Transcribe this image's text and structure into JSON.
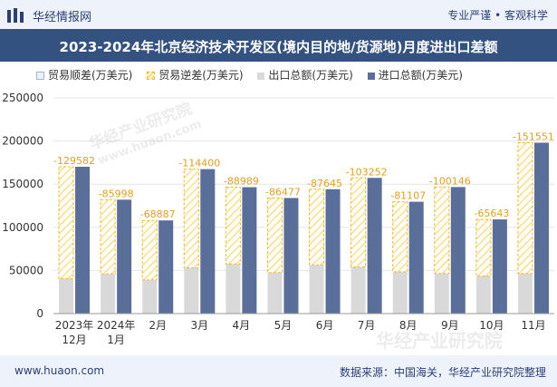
{
  "header": {
    "site_name": "华经情报网",
    "slogan": "专业严谨 • 客观科学"
  },
  "watermark": {
    "text": "华经产业研究院",
    "url": "www.huaon.com"
  },
  "footer": {
    "url": "www.huaon.com",
    "source": "数据来源：中国海关，华经产业研究院整理"
  },
  "colors": {
    "export": "#d9d9d9",
    "import": "#5a6e9a",
    "deficit_stroke": "#f2b92a",
    "deficit_label": "#e0a020",
    "title_bg": "#34527f"
  },
  "chart_data": {
    "type": "bar",
    "title": "2023-2024年北京经济技术开发区(境内目的地/货源地)月度进出口差额",
    "legend": [
      "贸易顺差(万美元)",
      "贸易逆差(万美元)",
      "出口总额(万美元)",
      "进口总额(万美元)"
    ],
    "categories": [
      [
        "2023年",
        "12月"
      ],
      [
        "2024年",
        "1月"
      ],
      [
        "2月"
      ],
      [
        "3月"
      ],
      [
        "4月"
      ],
      [
        "5月"
      ],
      [
        "6月"
      ],
      [
        "7月"
      ],
      [
        "8月"
      ],
      [
        "9月"
      ],
      [
        "10月"
      ],
      [
        "11月"
      ]
    ],
    "series": [
      {
        "name": "出口总额(万美元)",
        "values": [
          40600,
          46000,
          39100,
          53000,
          57500,
          47500,
          56500,
          54000,
          48500,
          46500,
          43500,
          46500
        ]
      },
      {
        "name": "进口总额(万美元)",
        "values": [
          170182,
          131998,
          107987,
          167400,
          146489,
          133977,
          144145,
          157252,
          129607,
          146646,
          109143,
          198051
        ]
      },
      {
        "name": "贸易逆差(万美元)",
        "values": [
          129582,
          85998,
          68887,
          114400,
          88989,
          86477,
          87645,
          103252,
          81107,
          100146,
          65643,
          151551
        ]
      }
    ],
    "deficit_labels": [
      "-129582",
      "-85998",
      "-68887",
      "-114400",
      "-88989",
      "-86477",
      "-87645",
      "-103252",
      "-81107",
      "-100146",
      "-65643",
      "-151551"
    ],
    "yticks": [
      "0",
      "50000",
      "100000",
      "150000",
      "200000",
      "250000"
    ],
    "ylim": [
      0,
      250000
    ]
  }
}
